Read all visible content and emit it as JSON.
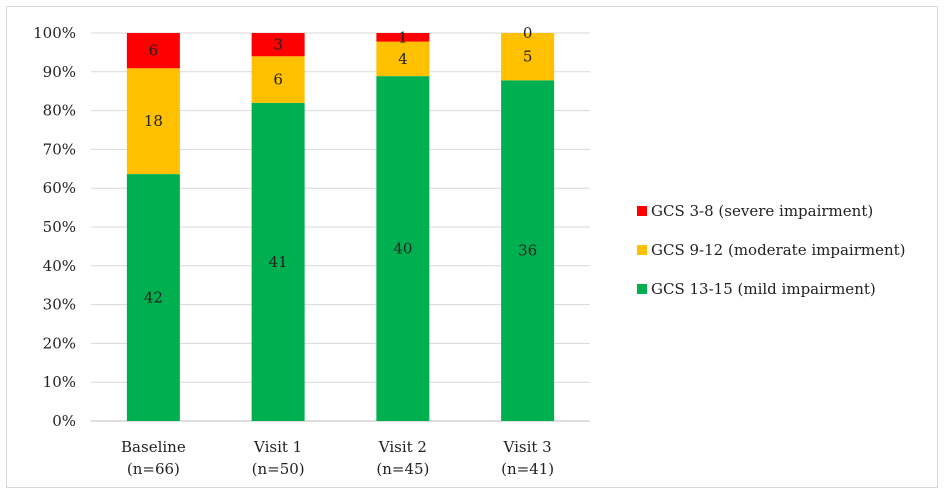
{
  "chart_data": {
    "type": "bar",
    "stacked": "percent",
    "categories": [
      [
        "Baseline",
        "(n=66)"
      ],
      [
        "Visit 1",
        "(n=50)"
      ],
      [
        "Visit 2",
        "(n=45)"
      ],
      [
        "Visit 3",
        "(n=41)"
      ]
    ],
    "series": [
      {
        "name": "GCS 13-15 (mild impairment)",
        "color": "#00b050",
        "values": [
          42,
          41,
          40,
          36
        ]
      },
      {
        "name": "GCS 9-12 (moderate impairment)",
        "color": "#ffc000",
        "values": [
          18,
          6,
          4,
          5
        ]
      },
      {
        "name": "GCS 3-8 (severe impairment)",
        "color": "#ff0000",
        "values": [
          6,
          3,
          1,
          0
        ]
      }
    ],
    "yticks": [
      "0%",
      "10%",
      "20%",
      "30%",
      "40%",
      "50%",
      "60%",
      "70%",
      "80%",
      "90%",
      "100%"
    ],
    "ylim": [
      0,
      100
    ],
    "grid": true,
    "legend_position": "right"
  }
}
